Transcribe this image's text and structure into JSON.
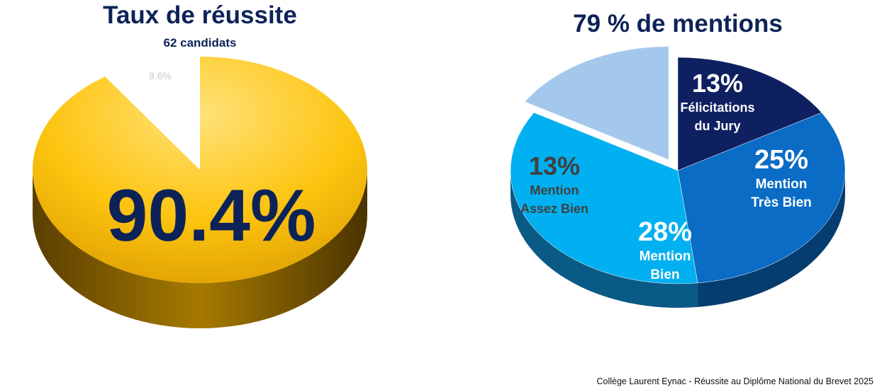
{
  "chart_data": [
    {
      "type": "pie",
      "title": "Taux de réussite",
      "subtitle": "62 candidats",
      "slices": [
        {
          "label": "",
          "value": 90.4,
          "display": "90.4%",
          "color": "#f5bd0f",
          "side_color": "#7a5a00"
        },
        {
          "label": "",
          "value": 9.6,
          "display": "9.6%",
          "color": "#ffffff",
          "side_color": "#ffffff"
        }
      ]
    },
    {
      "type": "pie",
      "title": "79 % de mentions",
      "slices": [
        {
          "label": "Félicitations du Jury",
          "lines": [
            "Félicitations",
            "du Jury"
          ],
          "value": 13,
          "display": "13%",
          "color": "#0f2060",
          "side_color": "#081338",
          "text_color": "#ffffff"
        },
        {
          "label": "Mention Très Bien",
          "lines": [
            "Mention",
            "Très Bien"
          ],
          "value": 25,
          "display": "25%",
          "color": "#0a6cc4",
          "side_color": "#063d70",
          "text_color": "#ffffff"
        },
        {
          "label": "Mention Bien",
          "lines": [
            "Mention",
            "Bien"
          ],
          "value": 28,
          "display": "28%",
          "color": "#00b0f0",
          "side_color": "#0a5a86",
          "text_color": "#ffffff"
        },
        {
          "label": "Mention Assez Bien",
          "lines": [
            "Mention",
            "Assez Bien"
          ],
          "value": 13,
          "display": "13%",
          "color": "#a4c8ec",
          "side_color": "#5d7fa3",
          "text_color": "#404040"
        }
      ]
    }
  ],
  "footer": "Collège Laurent Eynac - Réussite au Diplôme National du Brevet 2025"
}
